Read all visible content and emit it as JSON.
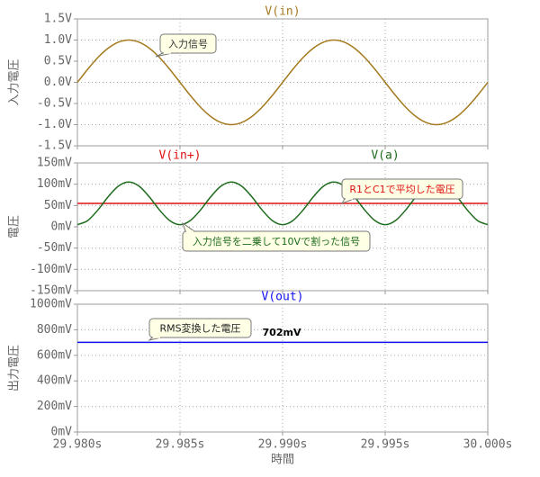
{
  "chart_data": [
    {
      "type": "line",
      "ylabel": "入力電圧",
      "xlim": [
        29.98,
        30.0
      ],
      "ylim": [
        -1.5,
        1.5
      ],
      "yticks": [
        {
          "value": 1.5,
          "label": "1.5V"
        },
        {
          "value": 1.0,
          "label": "1.0V"
        },
        {
          "value": 0.5,
          "label": "0.5V"
        },
        {
          "value": 0.0,
          "label": "0.0V"
        },
        {
          "value": -0.5,
          "label": "-0.5V"
        },
        {
          "value": -1.0,
          "label": "-1.0V"
        },
        {
          "value": -1.5,
          "label": "-1.5V"
        }
      ],
      "x": [
        29.98,
        29.9805,
        29.981,
        29.9815,
        29.982,
        29.9825,
        29.983,
        29.9835,
        29.984,
        29.9845,
        29.985,
        29.9855,
        29.986,
        29.9865,
        29.987,
        29.9875,
        29.988,
        29.9885,
        29.989,
        29.9895,
        29.99,
        29.9905,
        29.991,
        29.9915,
        29.992,
        29.9925,
        29.993,
        29.9935,
        29.994,
        29.9945,
        29.995,
        29.9955,
        29.996,
        29.9965,
        29.997,
        29.9975,
        29.998,
        29.9985,
        29.999,
        29.9995,
        30.0
      ],
      "series": [
        {
          "name": "V(in)",
          "color": "#a47a1e",
          "values": [
            0,
            0.309,
            0.588,
            0.809,
            0.951,
            1,
            0.951,
            0.809,
            0.588,
            0.309,
            0,
            -0.309,
            -0.588,
            -0.809,
            -0.951,
            -1,
            -0.951,
            -0.809,
            -0.588,
            -0.309,
            0,
            0.309,
            0.588,
            0.809,
            0.951,
            1,
            0.951,
            0.809,
            0.588,
            0.309,
            0,
            -0.309,
            -0.588,
            -0.809,
            -0.951,
            -1,
            -0.951,
            -0.809,
            -0.588,
            -0.309,
            0
          ]
        }
      ],
      "annotations": [
        {
          "text": "入力信号",
          "color": "#333333"
        }
      ]
    },
    {
      "type": "line",
      "ylabel": "電圧",
      "xlim": [
        29.98,
        30.0
      ],
      "ylim": [
        -150,
        150
      ],
      "yticks": [
        {
          "value": 150,
          "label": "150mV"
        },
        {
          "value": 100,
          "label": "100mV"
        },
        {
          "value": 50,
          "label": "50mV"
        },
        {
          "value": 0,
          "label": "0mV"
        },
        {
          "value": -50,
          "label": "-50mV"
        },
        {
          "value": -100,
          "label": "-100mV"
        },
        {
          "value": -150,
          "label": "-150mV"
        }
      ],
      "x": [
        29.98,
        29.9805,
        29.981,
        29.9815,
        29.982,
        29.9825,
        29.983,
        29.9835,
        29.984,
        29.9845,
        29.985,
        29.9855,
        29.986,
        29.9865,
        29.987,
        29.9875,
        29.988,
        29.9885,
        29.989,
        29.9895,
        29.99,
        29.9905,
        29.991,
        29.9915,
        29.992,
        29.9925,
        29.993,
        29.9935,
        29.994,
        29.9945,
        29.995,
        29.9955,
        29.996,
        29.9965,
        29.997,
        29.9975,
        29.998,
        29.9985,
        29.999,
        29.9995,
        30.0
      ],
      "series": [
        {
          "name": "V(in+)",
          "color": "#e01010",
          "values": [
            55,
            55,
            55,
            55,
            55,
            55,
            55,
            55,
            55,
            55,
            55,
            55,
            55,
            55,
            55,
            55,
            55,
            55,
            55,
            55,
            55,
            55,
            55,
            55,
            55,
            55,
            55,
            55,
            55,
            55,
            55,
            55,
            55,
            55,
            55,
            55,
            55,
            55,
            55,
            55,
            55
          ]
        },
        {
          "name": "V(a)",
          "color": "#1c6b1c",
          "values": [
            5,
            14.5,
            39.5,
            70.5,
            95.5,
            105,
            95.5,
            70.5,
            39.5,
            14.5,
            5,
            14.5,
            39.5,
            70.5,
            95.5,
            105,
            95.5,
            70.5,
            39.5,
            14.5,
            5,
            14.5,
            39.5,
            70.5,
            95.5,
            105,
            95.5,
            70.5,
            39.5,
            14.5,
            5,
            14.5,
            39.5,
            70.5,
            95.5,
            105,
            95.5,
            70.5,
            39.5,
            14.5,
            5
          ]
        }
      ],
      "annotations": [
        {
          "text": "R1とC1で平均した電圧",
          "color": "#e01010"
        },
        {
          "text": "入力信号を二乗して10Vで割った信号",
          "color": "#1c6b1c"
        }
      ]
    },
    {
      "type": "line",
      "ylabel": "出力電圧",
      "xlabel": "時間",
      "xlim": [
        29.98,
        30.0
      ],
      "ylim": [
        0,
        1000
      ],
      "xticks": [
        {
          "value": 29.98,
          "label": "29.980s"
        },
        {
          "value": 29.985,
          "label": "29.985s"
        },
        {
          "value": 29.99,
          "label": "29.990s"
        },
        {
          "value": 29.995,
          "label": "29.995s"
        },
        {
          "value": 30.0,
          "label": "30.000s"
        }
      ],
      "yticks": [
        {
          "value": 1000,
          "label": "1000mV"
        },
        {
          "value": 800,
          "label": "800mV"
        },
        {
          "value": 600,
          "label": "600mV"
        },
        {
          "value": 400,
          "label": "400mV"
        },
        {
          "value": 200,
          "label": "200mV"
        },
        {
          "value": 0,
          "label": "0mV"
        }
      ],
      "x": [
        29.98,
        30.0
      ],
      "series": [
        {
          "name": "V(out)",
          "color": "#1010ee",
          "values": [
            702,
            702
          ]
        }
      ],
      "annotations": [
        {
          "text": "RMS変換した電圧",
          "color": "#222222"
        },
        {
          "text": "702mV",
          "color": "#000000"
        }
      ]
    }
  ]
}
